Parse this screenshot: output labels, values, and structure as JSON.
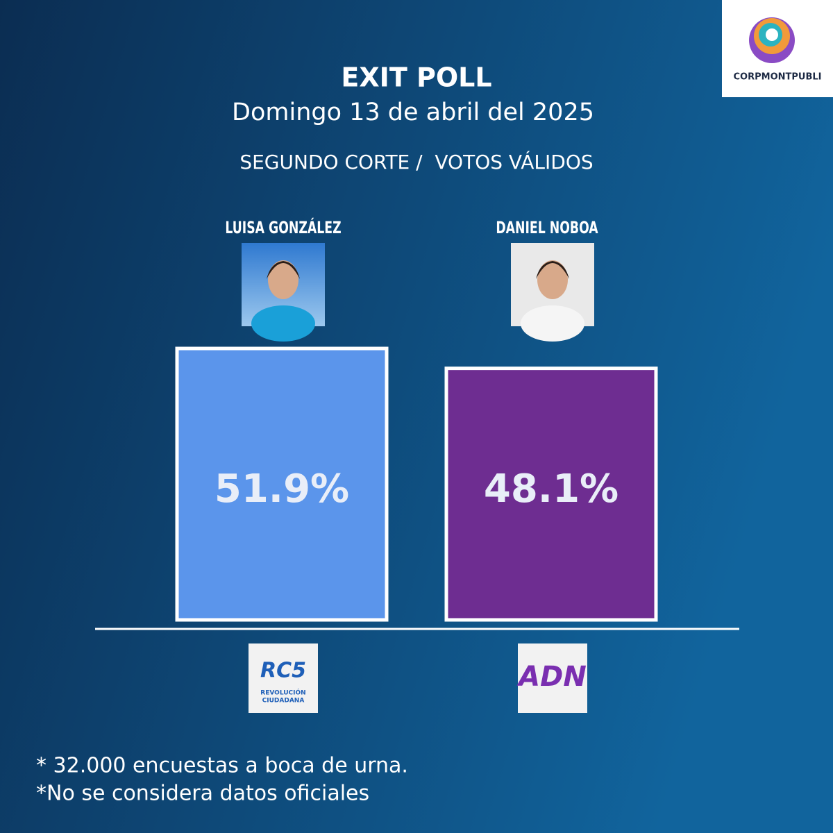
{
  "chart_data": {
    "type": "bar",
    "brand": "CORPMONTPUBLI",
    "title": "EXIT POLL",
    "subtitle": "Domingo 13 de abril del 2025",
    "note": "SEGUNDO CORTE /  VOTOS VÁLIDOS",
    "categories": [
      "LUISA GONZÁLEZ",
      "DANIEL NOBOA"
    ],
    "values": [
      51.9,
      48.1
    ],
    "value_labels": [
      "51.9%",
      "48.1%"
    ],
    "colors": [
      "#5b95eb",
      "#6e2d91"
    ],
    "parties": [
      {
        "mark": "RC5",
        "lines": [
          "REVOLUCIÓN",
          "CIUDADANA"
        ]
      },
      {
        "mark": "ADN",
        "lines": []
      }
    ],
    "footnotes": [
      "* 32.000 encuestas a boca de urna.",
      "*No se considera datos oficiales"
    ]
  }
}
